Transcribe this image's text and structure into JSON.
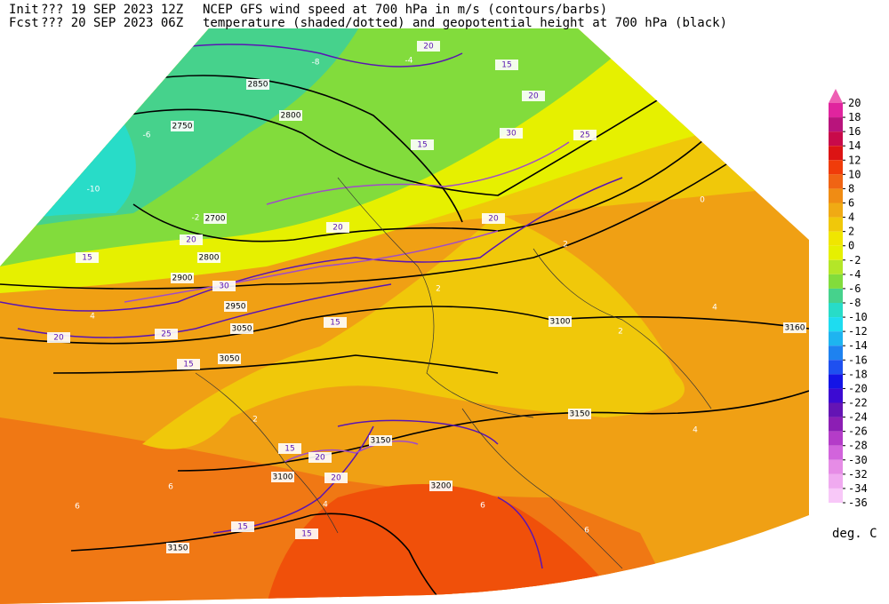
{
  "header": {
    "init_label": "Init",
    "init_run": "??? 19 SEP 2023 12Z",
    "fcst_label": "Fcst",
    "fcst_run": "??? 20 SEP 2023 06Z",
    "title_line1": "NCEP GFS wind speed at 700 hPa in m/s (contours/barbs)",
    "title_line2": "temperature (shaded/dotted) and geopotential height at 700 hPa (black)"
  },
  "colorbar": {
    "ticks": [
      20,
      18,
      16,
      14,
      12,
      10,
      8,
      6,
      4,
      2,
      0,
      -2,
      -4,
      -6,
      -8,
      -10,
      -12,
      -14,
      -16,
      -18,
      -20,
      -22,
      -24,
      -26,
      -28,
      -30,
      -32,
      -34,
      -36
    ],
    "colors": [
      "#ee5fb4",
      "#e0249e",
      "#b8147c",
      "#c80a4a",
      "#dc1414",
      "#f03c0a",
      "#f06414",
      "#f08c14",
      "#f0aa14",
      "#f0c80a",
      "#f0e600",
      "#e6f000",
      "#b4e628",
      "#82dc3c",
      "#46d28c",
      "#28dcc8",
      "#1edcf0",
      "#1eb4f0",
      "#1e82f0",
      "#1e50f0",
      "#1414e6",
      "#3c0ad2",
      "#6414b4",
      "#8c1eb4",
      "#b43cc8",
      "#d264dc",
      "#e68ce6",
      "#f0aaf0",
      "#f8c8f8"
    ],
    "unit": "deg. C"
  },
  "map_labels": {
    "height": [
      2850,
      2800,
      2750,
      2700,
      2800,
      2900,
      2950,
      3050,
      3050,
      3100,
      3100,
      3150,
      3150,
      3150,
      3160,
      3200
    ],
    "wind": [
      20,
      15,
      20,
      15,
      20,
      30,
      25,
      20,
      15,
      20,
      30,
      25,
      20,
      15,
      15,
      20,
      20,
      15,
      15,
      15
    ],
    "temperature": [
      -6,
      -8,
      -10,
      -4,
      -2,
      0,
      2,
      2,
      4,
      4,
      2,
      6,
      6,
      4,
      2,
      6,
      6,
      4
    ]
  }
}
